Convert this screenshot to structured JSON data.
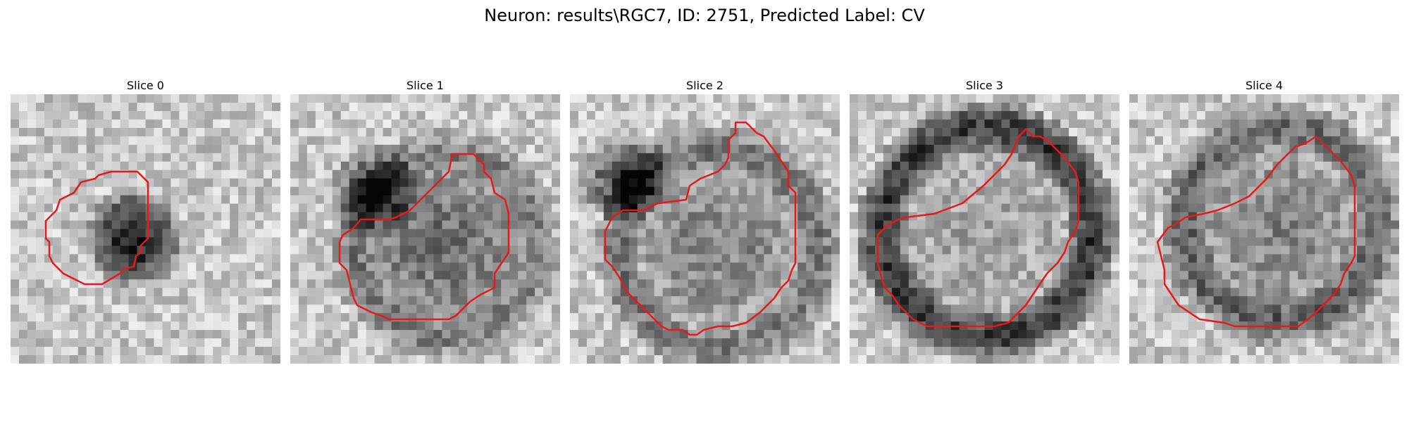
{
  "figure": {
    "title": "Neuron: results\\RGC7, ID: 2751, Predicted Label: CV",
    "contour_color": "#e41a1c"
  },
  "panels": [
    {
      "title": "Slice 0"
    },
    {
      "title": "Slice 1"
    },
    {
      "title": "Slice 2"
    },
    {
      "title": "Slice 3"
    },
    {
      "title": "Slice 4"
    }
  ]
}
